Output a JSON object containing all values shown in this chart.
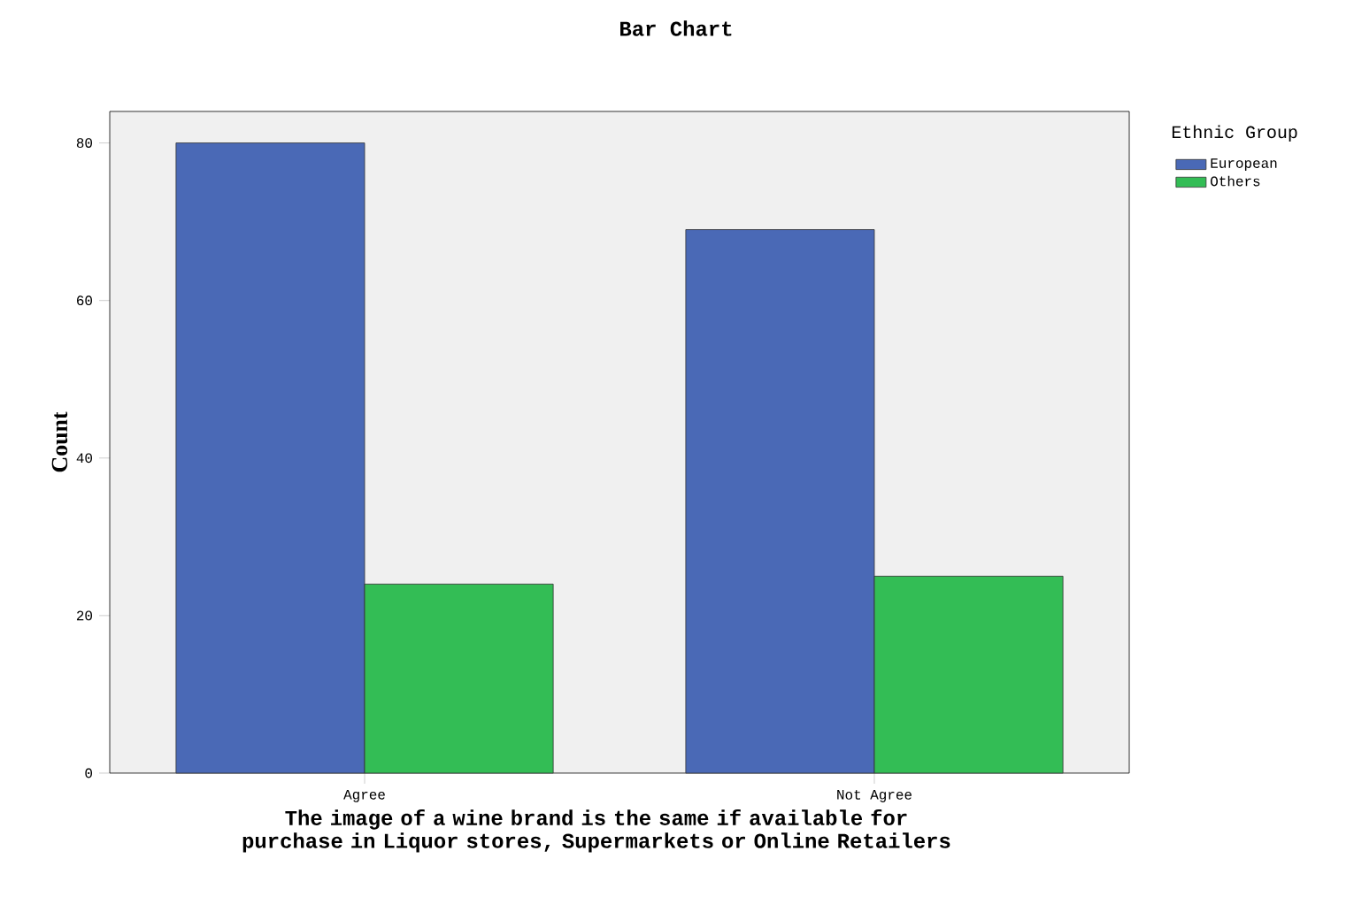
{
  "chart_data": {
    "type": "bar",
    "title": "Bar Chart",
    "xlabel": "The image of a wine brand is the same if available for purchase in Liquor stores, Supermarkets or Online Retailers",
    "ylabel": "Count",
    "legend_title": "Ethnic Group",
    "categories": [
      "Agree",
      "Not Agree"
    ],
    "series": [
      {
        "name": "European",
        "color": "#4a69b6",
        "values": [
          80,
          69
        ]
      },
      {
        "name": "Others",
        "color": "#33bd55",
        "values": [
          24,
          25
        ]
      }
    ],
    "ylim": [
      0,
      84
    ],
    "yticks": [
      0,
      20,
      40,
      60,
      80
    ],
    "grid": false,
    "legend": "top right"
  }
}
